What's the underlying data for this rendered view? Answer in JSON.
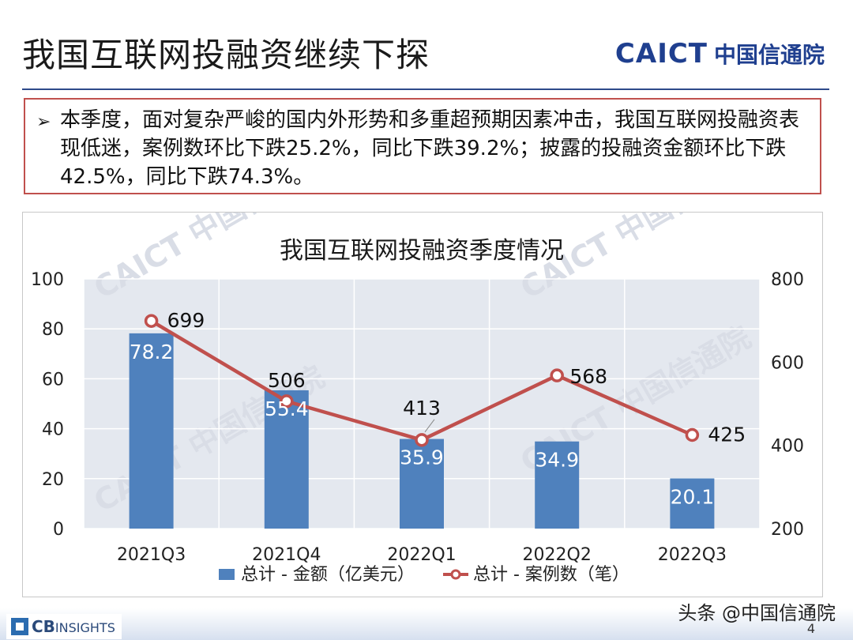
{
  "header": {
    "title": "我国互联网投融资继续下探",
    "logo_mark": "CAICT",
    "logo_name": "中国信通院"
  },
  "summary": {
    "bullet": "➢",
    "text": "本季度，面对复杂严峻的国内外形势和多重超预期因素冲击，我国互联网投融资表现低迷，案例数环比下跌25.2%，同比下跌39.2%；披露的投融资金额环比下跌42.5%，同比下跌74.3%。"
  },
  "watermark": {
    "text": "CAICT 中国信通院"
  },
  "chart_data": {
    "type": "bar",
    "title": "我国互联网投融资季度情况",
    "categories": [
      "2021Q3",
      "2021Q4",
      "2022Q1",
      "2022Q2",
      "2022Q3"
    ],
    "series": [
      {
        "name": "总计 - 金额（亿美元）",
        "type": "bar",
        "axis": "left",
        "values": [
          78.2,
          55.4,
          35.9,
          34.9,
          20.1
        ],
        "color": "#4f81bd"
      },
      {
        "name": "总计 - 案例数（笔）",
        "type": "line",
        "axis": "right",
        "values": [
          699,
          506,
          413,
          568,
          425
        ],
        "color": "#c0504d"
      }
    ],
    "y_left": {
      "range": [
        0,
        100
      ],
      "ticks": [
        0,
        20,
        40,
        60,
        80,
        100
      ]
    },
    "y_right": {
      "range": [
        200,
        800
      ],
      "ticks": [
        200,
        400,
        600,
        800
      ]
    },
    "grid": true,
    "legend_position": "bottom"
  },
  "footer": {
    "cb_logo_bold": "CB",
    "cb_logo_light": "INSIGHTS",
    "page_number": "4",
    "source": "头条 @中国信通院"
  }
}
